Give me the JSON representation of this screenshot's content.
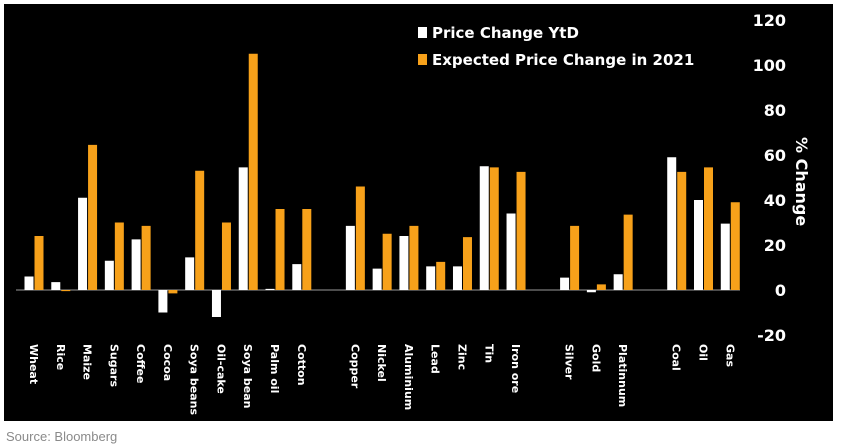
{
  "source": "Source: Bloomberg",
  "colors": {
    "background": "#000000",
    "price_change_ytd": "#ffffff",
    "expected_price_change_2021": "#f7a11a",
    "text": "#ffffff",
    "source_text": "#8a8a8a"
  },
  "chart_data": {
    "type": "bar",
    "title": "",
    "xlabel": "",
    "ylabel": "% Change",
    "ylim": [
      -20,
      120
    ],
    "yticks": [
      -20,
      0,
      20,
      40,
      60,
      80,
      100,
      120
    ],
    "grid": false,
    "legend_position": "top-right",
    "categories": [
      "Wheat",
      "Rice",
      "Maize",
      "Sugars",
      "Coffee",
      "Cocoa",
      "Soya beans",
      "Oil-cake",
      "Soya bean",
      "Palm oil",
      "Cotton",
      "Copper",
      "Nickel",
      "Aluminium",
      "Lead",
      "Zinc",
      "Tin",
      "Iron ore",
      "Silver",
      "Gold",
      "Platinnum",
      "Coal",
      "Oil",
      "Gas"
    ],
    "groups": [
      [
        "Wheat",
        "Rice",
        "Maize",
        "Sugars",
        "Coffee",
        "Cocoa",
        "Soya beans",
        "Oil-cake",
        "Soya bean",
        "Palm oil",
        "Cotton"
      ],
      [
        "Copper",
        "Nickel",
        "Aluminium",
        "Lead",
        "Zinc",
        "Tin",
        "Iron ore"
      ],
      [
        "Silver",
        "Gold",
        "Platinnum"
      ],
      [
        "Coal",
        "Oil",
        "Gas"
      ]
    ],
    "series": [
      {
        "name": "Price Change YtD",
        "values": [
          6,
          3.5,
          41,
          13,
          22.5,
          -10,
          14.5,
          -12,
          54.5,
          0.5,
          11.5,
          28.5,
          9.5,
          24,
          10.5,
          10.5,
          55,
          34,
          5.5,
          -1,
          7,
          59,
          40,
          29.5
        ]
      },
      {
        "name": "Expected Price Change in 2021",
        "values": [
          24,
          -0.5,
          64.5,
          30,
          28.5,
          -1.5,
          53,
          30,
          105,
          36,
          36,
          46,
          25,
          28.5,
          12.5,
          23.5,
          54.5,
          52.5,
          28.5,
          2.5,
          33.5,
          52.5,
          54.5,
          39
        ]
      }
    ]
  }
}
